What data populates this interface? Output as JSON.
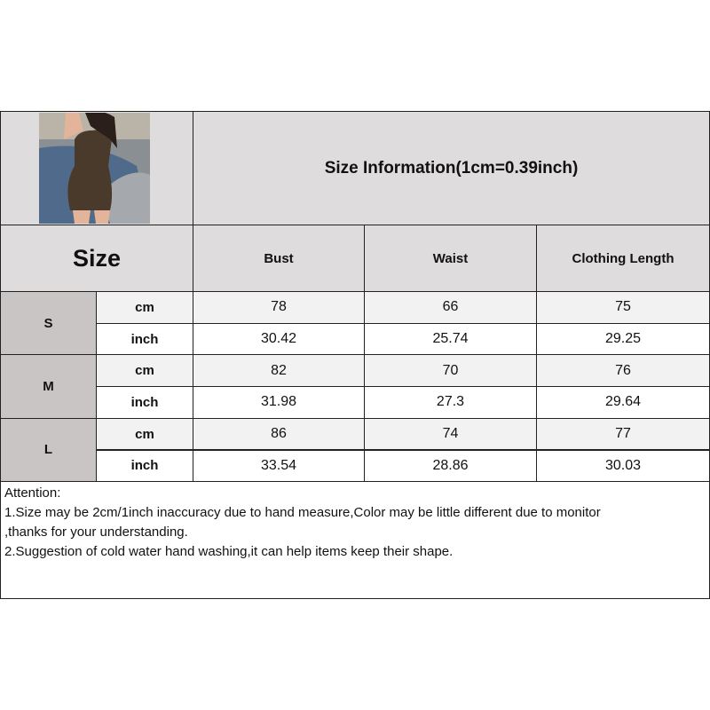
{
  "header": {
    "title": "Size Information(1cm=0.39inch)",
    "size_label": "Size"
  },
  "columns": [
    "Bust",
    "Waist",
    "Clothing Length"
  ],
  "rows": [
    {
      "size": "S",
      "cm": [
        "78",
        "66",
        "75"
      ],
      "inch": [
        "30.42",
        "25.74",
        "29.25"
      ]
    },
    {
      "size": "M",
      "cm": [
        "82",
        "70",
        "76"
      ],
      "inch": [
        "31.98",
        "27.3",
        "29.64"
      ]
    },
    {
      "size": "L",
      "cm": [
        "86",
        "74",
        "77"
      ],
      "inch": [
        "33.54",
        "28.86",
        "30.03"
      ]
    }
  ],
  "units": {
    "cm": "cm",
    "inch": "inch"
  },
  "notes": [
    "Attention:",
    "1.Size may be 2cm/1inch inaccuracy due to hand measure,Color may be little different due to monitor",
    ",thanks for your understanding.",
    "2.Suggestion of cold water hand washing,it can help items keep their shape."
  ]
}
